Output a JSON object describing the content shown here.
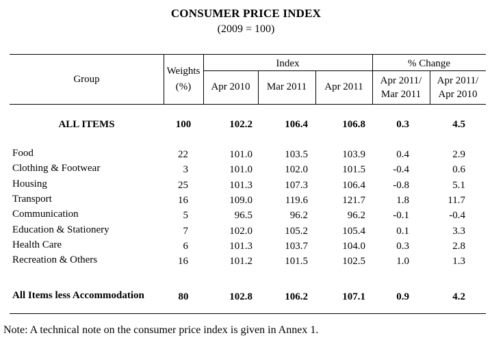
{
  "title": "CONSUMER PRICE INDEX",
  "subtitle": "(2009 = 100)",
  "headers": {
    "group": "Group",
    "weights_line1": "Weights",
    "weights_line2": "(%)",
    "index": "Index",
    "pct_change": "% Change",
    "col_apr2010": "Apr 2010",
    "col_mar2011": "Mar 2011",
    "col_apr2011": "Apr 2011",
    "chg1_line1": "Apr 2011/",
    "chg1_line2": "Mar 2011",
    "chg2_line1": "Apr 2011/",
    "chg2_line2": "Apr 2010"
  },
  "all_items": {
    "label": "ALL ITEMS",
    "weight": "100",
    "apr2010": "102.2",
    "mar2011": "106.4",
    "apr2011": "106.8",
    "chg_mom": "0.3",
    "chg_yoy": "4.5"
  },
  "rows": [
    {
      "label": "Food",
      "weight": "22",
      "apr2010": "101.0",
      "mar2011": "103.5",
      "apr2011": "103.9",
      "chg_mom": "0.4",
      "chg_yoy": "2.9"
    },
    {
      "label": "Clothing & Footwear",
      "weight": "3",
      "apr2010": "101.0",
      "mar2011": "102.0",
      "apr2011": "101.5",
      "chg_mom": "-0.4",
      "chg_yoy": "0.6"
    },
    {
      "label": "Housing",
      "weight": "25",
      "apr2010": "101.3",
      "mar2011": "107.3",
      "apr2011": "106.4",
      "chg_mom": "-0.8",
      "chg_yoy": "5.1"
    },
    {
      "label": "Transport",
      "weight": "16",
      "apr2010": "109.0",
      "mar2011": "119.6",
      "apr2011": "121.7",
      "chg_mom": "1.8",
      "chg_yoy": "11.7"
    },
    {
      "label": "Communication",
      "weight": "5",
      "apr2010": "96.5",
      "mar2011": "96.2",
      "apr2011": "96.2",
      "chg_mom": "-0.1",
      "chg_yoy": "-0.4"
    },
    {
      "label": "Education & Stationery",
      "weight": "7",
      "apr2010": "102.0",
      "mar2011": "105.2",
      "apr2011": "105.4",
      "chg_mom": "0.1",
      "chg_yoy": "3.3"
    },
    {
      "label": "Health Care",
      "weight": "6",
      "apr2010": "101.3",
      "mar2011": "103.7",
      "apr2011": "104.0",
      "chg_mom": "0.3",
      "chg_yoy": "2.8"
    },
    {
      "label": "Recreation & Others",
      "weight": "16",
      "apr2010": "101.2",
      "mar2011": "101.5",
      "apr2011": "102.5",
      "chg_mom": "1.0",
      "chg_yoy": "1.3"
    }
  ],
  "less_accommodation": {
    "label": "All Items less Accommodation",
    "weight": "80",
    "apr2010": "102.8",
    "mar2011": "106.2",
    "apr2011": "107.1",
    "chg_mom": "0.9",
    "chg_yoy": "4.2"
  },
  "note": "Note: A technical note on the consumer price index is given in Annex 1."
}
